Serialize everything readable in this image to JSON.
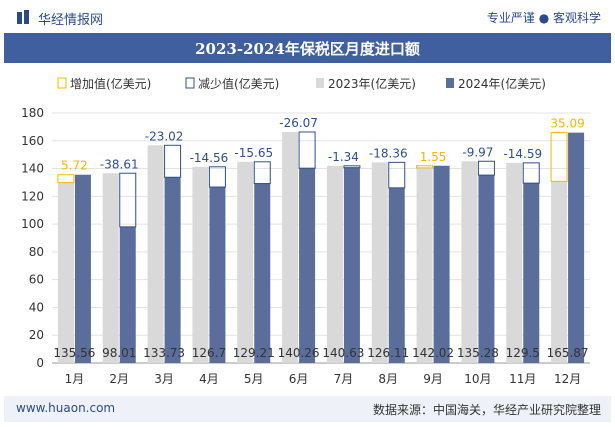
{
  "header": {
    "logo_icon": "bar-logo-icon",
    "site_name": "华经情报网",
    "slogan": "专业严谨 ● 客观科学"
  },
  "title": "2023-2024年保税区月度进口额",
  "footer": {
    "url": "www.huaon.com",
    "source": "数据来源：中国海关，华经产业研究院整理"
  },
  "colors": {
    "series_2023": "#d9d9d9",
    "series_2024": "#5b6e9b",
    "increase": "#f2b800",
    "decrease": "#2e4f8f",
    "titlebar": "#3f5f9e"
  },
  "chart_data": {
    "type": "bar",
    "categories": [
      "1月",
      "2月",
      "3月",
      "4月",
      "5月",
      "6月",
      "7月",
      "8月",
      "9月",
      "10月",
      "11月",
      "12月"
    ],
    "series": [
      {
        "name": "2023年(亿美元)",
        "values": [
          129.84,
          136.62,
          156.75,
          141.26,
          144.86,
          166.33,
          141.97,
          144.47,
          140.47,
          145.25,
          144.09,
          130.78
        ]
      },
      {
        "name": "2024年(亿美元)",
        "values": [
          135.56,
          98.01,
          133.73,
          126.7,
          129.21,
          140.26,
          140.63,
          126.11,
          142.02,
          135.28,
          129.5,
          165.87
        ]
      }
    ],
    "changes": [
      5.72,
      -38.61,
      -23.02,
      -14.56,
      -15.65,
      -26.07,
      -1.34,
      -18.36,
      1.55,
      -9.97,
      -14.59,
      35.09
    ],
    "change_labels": [
      "5.72",
      "-38.61",
      "-23.02",
      "-14.56",
      "-15.65",
      "-26.07",
      "-1.34",
      "-18.36",
      "1.55",
      "-9.97",
      "-14.59",
      "35.09"
    ],
    "value_labels": [
      "135.56",
      "98.01",
      "133.73",
      "126.7",
      "129.21",
      "140.26",
      "140.63",
      "126.11",
      "142.02",
      "135.28",
      "129.5",
      "165.87"
    ],
    "legend": [
      "增加值(亿美元)",
      "减少值(亿美元)",
      "2023年(亿美元)",
      "2024年(亿美元)"
    ],
    "legend_position": "top",
    "ylim": [
      0,
      180
    ],
    "yticks": [
      0,
      20,
      40,
      60,
      80,
      100,
      120,
      140,
      160,
      180
    ],
    "grid": true
  }
}
